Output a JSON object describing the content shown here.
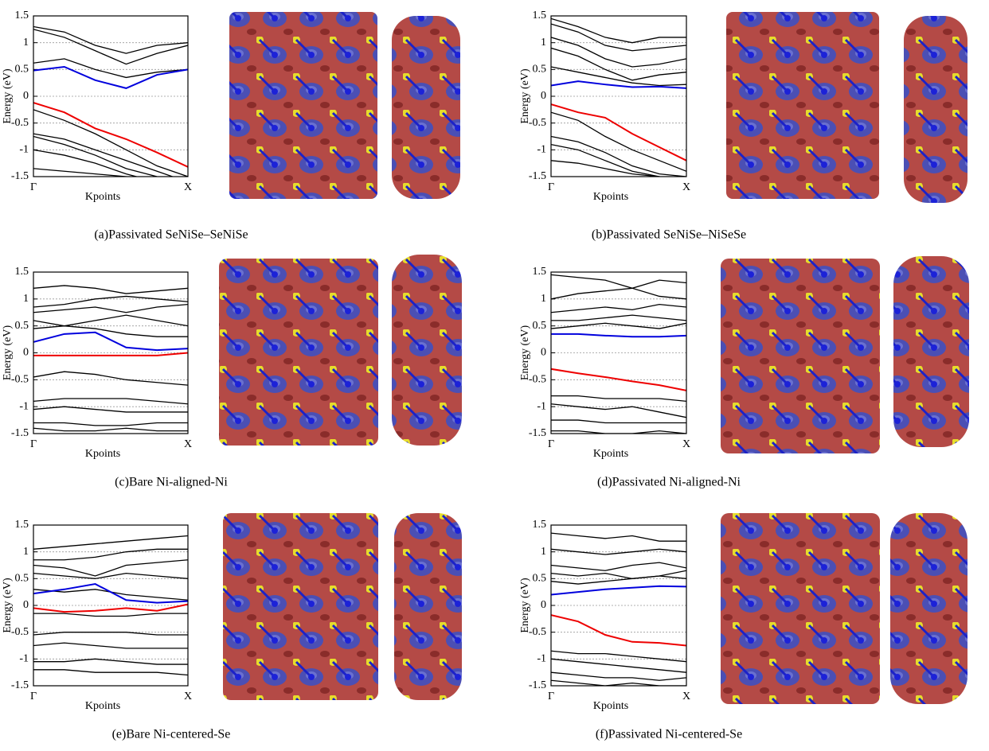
{
  "chart_data": [
    {
      "type": "line",
      "caption": "(a)Passivated SeNiSe–SeNiSe",
      "ylabel": "Energy (eV)",
      "xlabel": "Kpoints",
      "xlim": [
        0,
        1
      ],
      "xticks": [
        {
          "value": 0,
          "label": "Γ"
        },
        {
          "value": 1,
          "label": "X"
        }
      ],
      "ylim": [
        -1.5,
        1.5
      ],
      "yticks": [
        -1.5,
        -1,
        -0.5,
        0,
        0.5,
        1,
        1.5
      ],
      "grid": true,
      "x": [
        0,
        0.2,
        0.4,
        0.6,
        0.8,
        1
      ],
      "series": [
        {
          "color": "#000000",
          "values": [
            1.3,
            1.2,
            0.95,
            0.8,
            0.95,
            1.0
          ]
        },
        {
          "color": "#000000",
          "values": [
            1.25,
            1.1,
            0.85,
            0.6,
            0.8,
            0.95
          ]
        },
        {
          "color": "#000000",
          "values": [
            0.62,
            0.7,
            0.5,
            0.35,
            0.45,
            0.5
          ]
        },
        {
          "color": "#000000",
          "values": [
            -0.25,
            -0.45,
            -0.7,
            -1.0,
            -1.3,
            -1.5
          ]
        },
        {
          "color": "#000000",
          "values": [
            -0.7,
            -0.8,
            -1.0,
            -1.2,
            -1.4,
            -1.6
          ]
        },
        {
          "color": "#000000",
          "values": [
            -0.75,
            -0.9,
            -1.1,
            -1.35,
            -1.5,
            -1.6
          ]
        },
        {
          "color": "#000000",
          "values": [
            -1.0,
            -1.1,
            -1.25,
            -1.45,
            -1.6,
            -1.7
          ]
        },
        {
          "color": "#000000",
          "values": [
            -1.35,
            -1.4,
            -1.45,
            -1.5,
            -1.55,
            -1.6
          ]
        },
        {
          "color": "#0000dd",
          "values": [
            0.48,
            0.55,
            0.3,
            0.15,
            0.4,
            0.5
          ]
        },
        {
          "color": "#ee0000",
          "values": [
            -0.12,
            -0.3,
            -0.6,
            -0.8,
            -1.05,
            -1.32
          ]
        }
      ]
    },
    {
      "type": "line",
      "caption": "(b)Passivated SeNiSe–NiSeSe",
      "ylabel": "Energy (eV)",
      "xlabel": "Kpoints",
      "xlim": [
        0,
        1
      ],
      "xticks": [
        {
          "value": 0,
          "label": "Γ"
        },
        {
          "value": 1,
          "label": "X"
        }
      ],
      "ylim": [
        -1.5,
        1.5
      ],
      "yticks": [
        -1.5,
        -1,
        -0.5,
        0,
        0.5,
        1,
        1.5
      ],
      "grid": true,
      "x": [
        0,
        0.2,
        0.4,
        0.6,
        0.8,
        1
      ],
      "series": [
        {
          "color": "#000000",
          "values": [
            1.45,
            1.3,
            1.1,
            1.0,
            1.1,
            1.1
          ]
        },
        {
          "color": "#000000",
          "values": [
            1.35,
            1.2,
            0.95,
            0.85,
            0.9,
            0.95
          ]
        },
        {
          "color": "#000000",
          "values": [
            1.1,
            0.95,
            0.7,
            0.55,
            0.6,
            0.7
          ]
        },
        {
          "color": "#000000",
          "values": [
            0.9,
            0.75,
            0.5,
            0.3,
            0.4,
            0.45
          ]
        },
        {
          "color": "#000000",
          "values": [
            0.55,
            0.45,
            0.35,
            0.25,
            0.2,
            0.22
          ]
        },
        {
          "color": "#000000",
          "values": [
            -0.3,
            -0.45,
            -0.75,
            -1.0,
            -1.2,
            -1.4
          ]
        },
        {
          "color": "#000000",
          "values": [
            -0.75,
            -0.85,
            -1.05,
            -1.3,
            -1.45,
            -1.5
          ]
        },
        {
          "color": "#000000",
          "values": [
            -0.9,
            -1.0,
            -1.2,
            -1.4,
            -1.5,
            -1.6
          ]
        },
        {
          "color": "#000000",
          "values": [
            -1.2,
            -1.25,
            -1.35,
            -1.45,
            -1.5,
            -1.55
          ]
        },
        {
          "color": "#0000dd",
          "values": [
            0.2,
            0.28,
            0.22,
            0.17,
            0.18,
            0.15
          ]
        },
        {
          "color": "#ee0000",
          "values": [
            -0.15,
            -0.3,
            -0.4,
            -0.7,
            -0.95,
            -1.2
          ]
        }
      ]
    },
    {
      "type": "line",
      "caption": "(c)Bare Ni-aligned-Ni",
      "ylabel": "Energy (eV)",
      "xlabel": "Kpoints",
      "xlim": [
        0,
        1
      ],
      "xticks": [
        {
          "value": 0,
          "label": "Γ"
        },
        {
          "value": 1,
          "label": "X"
        }
      ],
      "ylim": [
        -1.5,
        1.5
      ],
      "yticks": [
        -1.5,
        -1,
        -0.5,
        0,
        0.5,
        1,
        1.5
      ],
      "grid": true,
      "x": [
        0,
        0.2,
        0.4,
        0.6,
        0.8,
        1
      ],
      "series": [
        {
          "color": "#000000",
          "values": [
            1.2,
            1.25,
            1.2,
            1.1,
            1.15,
            1.2
          ]
        },
        {
          "color": "#000000",
          "values": [
            0.85,
            0.9,
            1.0,
            1.05,
            1.0,
            0.95
          ]
        },
        {
          "color": "#000000",
          "values": [
            0.75,
            0.8,
            0.85,
            0.75,
            0.85,
            0.9
          ]
        },
        {
          "color": "#000000",
          "values": [
            0.6,
            0.5,
            0.6,
            0.7,
            0.6,
            0.5
          ]
        },
        {
          "color": "#000000",
          "values": [
            0.45,
            0.5,
            0.45,
            0.35,
            0.3,
            0.3
          ]
        },
        {
          "color": "#000000",
          "values": [
            -0.45,
            -0.35,
            -0.4,
            -0.5,
            -0.55,
            -0.6
          ]
        },
        {
          "color": "#000000",
          "values": [
            -0.9,
            -0.85,
            -0.85,
            -0.85,
            -0.9,
            -0.95
          ]
        },
        {
          "color": "#000000",
          "values": [
            -1.05,
            -1.0,
            -1.05,
            -1.1,
            -1.1,
            -1.1
          ]
        },
        {
          "color": "#000000",
          "values": [
            -1.3,
            -1.3,
            -1.35,
            -1.35,
            -1.3,
            -1.3
          ]
        },
        {
          "color": "#000000",
          "values": [
            -1.4,
            -1.45,
            -1.45,
            -1.4,
            -1.45,
            -1.45
          ]
        },
        {
          "color": "#0000dd",
          "values": [
            0.2,
            0.35,
            0.38,
            0.1,
            0.05,
            0.08
          ]
        },
        {
          "color": "#ee0000",
          "values": [
            -0.05,
            -0.05,
            -0.05,
            -0.05,
            -0.05,
            0.0
          ]
        }
      ]
    },
    {
      "type": "line",
      "caption": "(d)Passivated Ni-aligned-Ni",
      "ylabel": "Energy (eV)",
      "xlabel": "Kpoints",
      "xlim": [
        0,
        1
      ],
      "xticks": [
        {
          "value": 0,
          "label": "Γ"
        },
        {
          "value": 1,
          "label": "X"
        }
      ],
      "ylim": [
        -1.5,
        1.5
      ],
      "yticks": [
        -1.5,
        -1,
        -0.5,
        0,
        0.5,
        1,
        1.5
      ],
      "grid": true,
      "x": [
        0,
        0.2,
        0.4,
        0.6,
        0.8,
        1
      ],
      "series": [
        {
          "color": "#000000",
          "values": [
            1.45,
            1.4,
            1.35,
            1.2,
            1.35,
            1.3
          ]
        },
        {
          "color": "#000000",
          "values": [
            1.0,
            1.1,
            1.15,
            1.2,
            1.05,
            1.0
          ]
        },
        {
          "color": "#000000",
          "values": [
            0.75,
            0.8,
            0.85,
            0.8,
            0.9,
            0.85
          ]
        },
        {
          "color": "#000000",
          "values": [
            0.6,
            0.6,
            0.65,
            0.7,
            0.65,
            0.6
          ]
        },
        {
          "color": "#000000",
          "values": [
            0.45,
            0.5,
            0.55,
            0.5,
            0.45,
            0.55
          ]
        },
        {
          "color": "#000000",
          "values": [
            -0.8,
            -0.8,
            -0.85,
            -0.85,
            -0.85,
            -0.9
          ]
        },
        {
          "color": "#000000",
          "values": [
            -0.95,
            -1.0,
            -1.05,
            -1.0,
            -1.1,
            -1.2
          ]
        },
        {
          "color": "#000000",
          "values": [
            -1.25,
            -1.25,
            -1.3,
            -1.3,
            -1.3,
            -1.3
          ]
        },
        {
          "color": "#000000",
          "values": [
            -1.45,
            -1.45,
            -1.5,
            -1.5,
            -1.45,
            -1.5
          ]
        },
        {
          "color": "#0000dd",
          "values": [
            0.35,
            0.35,
            0.32,
            0.3,
            0.3,
            0.32
          ]
        },
        {
          "color": "#ee0000",
          "values": [
            -0.3,
            -0.38,
            -0.45,
            -0.53,
            -0.6,
            -0.7
          ]
        }
      ]
    },
    {
      "type": "line",
      "caption": "(e)Bare Ni-centered-Se",
      "ylabel": "Energy (eV)",
      "xlabel": "Kpoints",
      "xlim": [
        0,
        1
      ],
      "xticks": [
        {
          "value": 0,
          "label": "Γ"
        },
        {
          "value": 1,
          "label": "X"
        }
      ],
      "ylim": [
        -1.5,
        1.5
      ],
      "yticks": [
        -1.5,
        -1,
        -0.5,
        0,
        0.5,
        1,
        1.5
      ],
      "grid": true,
      "x": [
        0,
        0.2,
        0.4,
        0.6,
        0.8,
        1
      ],
      "series": [
        {
          "color": "#000000",
          "values": [
            1.05,
            1.1,
            1.15,
            1.2,
            1.25,
            1.3
          ]
        },
        {
          "color": "#000000",
          "values": [
            0.85,
            0.85,
            0.9,
            1.0,
            1.05,
            1.05
          ]
        },
        {
          "color": "#000000",
          "values": [
            0.75,
            0.7,
            0.55,
            0.75,
            0.8,
            0.85
          ]
        },
        {
          "color": "#000000",
          "values": [
            0.6,
            0.55,
            0.5,
            0.6,
            0.55,
            0.5
          ]
        },
        {
          "color": "#000000",
          "values": [
            0.3,
            0.25,
            0.3,
            0.2,
            0.15,
            0.1
          ]
        },
        {
          "color": "#000000",
          "values": [
            -0.15,
            -0.15,
            -0.2,
            -0.2,
            -0.15,
            -0.15
          ]
        },
        {
          "color": "#000000",
          "values": [
            -0.55,
            -0.5,
            -0.5,
            -0.5,
            -0.55,
            -0.55
          ]
        },
        {
          "color": "#000000",
          "values": [
            -0.75,
            -0.7,
            -0.75,
            -0.8,
            -0.8,
            -0.8
          ]
        },
        {
          "color": "#000000",
          "values": [
            -1.05,
            -1.05,
            -1.0,
            -1.05,
            -1.1,
            -1.1
          ]
        },
        {
          "color": "#000000",
          "values": [
            -1.2,
            -1.2,
            -1.25,
            -1.25,
            -1.25,
            -1.3
          ]
        },
        {
          "color": "#0000dd",
          "values": [
            0.22,
            0.3,
            0.4,
            0.1,
            0.05,
            0.08
          ]
        },
        {
          "color": "#ee0000",
          "values": [
            -0.05,
            -0.12,
            -0.1,
            -0.05,
            -0.1,
            0.02
          ]
        }
      ]
    },
    {
      "type": "line",
      "caption": "(f)Passivated Ni-centered-Se",
      "ylabel": "Energy (eV)",
      "xlabel": "Kpoints",
      "xlim": [
        0,
        1
      ],
      "xticks": [
        {
          "value": 0,
          "label": "Γ"
        },
        {
          "value": 1,
          "label": "X"
        }
      ],
      "ylim": [
        -1.5,
        1.5
      ],
      "yticks": [
        -1.5,
        -1,
        -0.5,
        0,
        0.5,
        1,
        1.5
      ],
      "grid": true,
      "x": [
        0,
        0.2,
        0.4,
        0.6,
        0.8,
        1
      ],
      "series": [
        {
          "color": "#000000",
          "values": [
            1.35,
            1.3,
            1.25,
            1.3,
            1.2,
            1.2
          ]
        },
        {
          "color": "#000000",
          "values": [
            1.05,
            1.0,
            0.95,
            1.0,
            1.05,
            1.0
          ]
        },
        {
          "color": "#000000",
          "values": [
            0.75,
            0.7,
            0.65,
            0.75,
            0.8,
            0.7
          ]
        },
        {
          "color": "#000000",
          "values": [
            0.6,
            0.55,
            0.6,
            0.5,
            0.55,
            0.65
          ]
        },
        {
          "color": "#000000",
          "values": [
            0.45,
            0.4,
            0.45,
            0.5,
            0.55,
            0.5
          ]
        },
        {
          "color": "#000000",
          "values": [
            -0.85,
            -0.9,
            -0.9,
            -0.95,
            -1.0,
            -1.05
          ]
        },
        {
          "color": "#000000",
          "values": [
            -1.0,
            -1.05,
            -1.1,
            -1.15,
            -1.2,
            -1.25
          ]
        },
        {
          "color": "#000000",
          "values": [
            -1.25,
            -1.3,
            -1.35,
            -1.35,
            -1.4,
            -1.35
          ]
        },
        {
          "color": "#000000",
          "values": [
            -1.4,
            -1.45,
            -1.5,
            -1.45,
            -1.5,
            -1.5
          ]
        },
        {
          "color": "#0000dd",
          "values": [
            0.2,
            0.25,
            0.3,
            0.33,
            0.36,
            0.35
          ]
        },
        {
          "color": "#ee0000",
          "values": [
            -0.18,
            -0.3,
            -0.55,
            -0.68,
            -0.7,
            -0.75
          ]
        }
      ]
    }
  ]
}
